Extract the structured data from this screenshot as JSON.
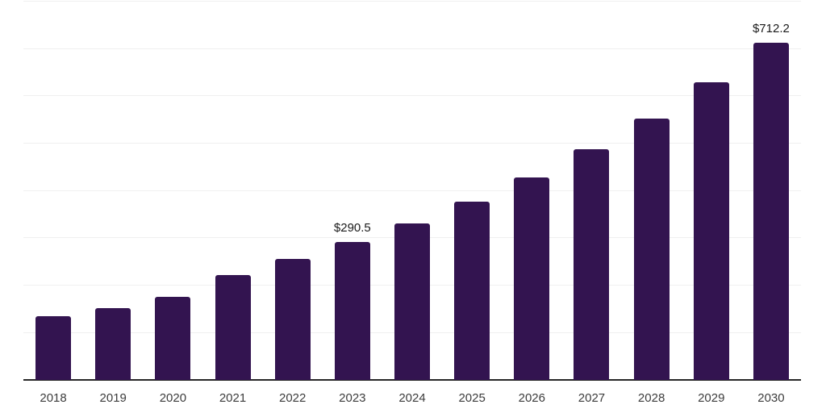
{
  "chart_data": {
    "type": "bar",
    "title": "",
    "xlabel": "",
    "ylabel": "",
    "categories": [
      "2018",
      "2019",
      "2020",
      "2021",
      "2022",
      "2023",
      "2024",
      "2025",
      "2026",
      "2027",
      "2028",
      "2029",
      "2030"
    ],
    "values": [
      134,
      151,
      174,
      221,
      254,
      290.5,
      330,
      375,
      427,
      486,
      552,
      628,
      712.2
    ],
    "point_labels": [
      "",
      "",
      "",
      "",
      "",
      "$290.5",
      "",
      "",
      "",
      "",
      "",
      "",
      "$712.2"
    ],
    "ylim": [
      0,
      800
    ],
    "grid_interval": 100,
    "grid": true,
    "legend": "none",
    "y_tick_labels_visible": false,
    "colors": {
      "bar": "#331450",
      "grid_line": "#f0f0f0",
      "axis_line": "#262626",
      "value_label": "#1a1a1a",
      "tick_label": "#3c3c3c",
      "background": "#ffffff"
    }
  }
}
